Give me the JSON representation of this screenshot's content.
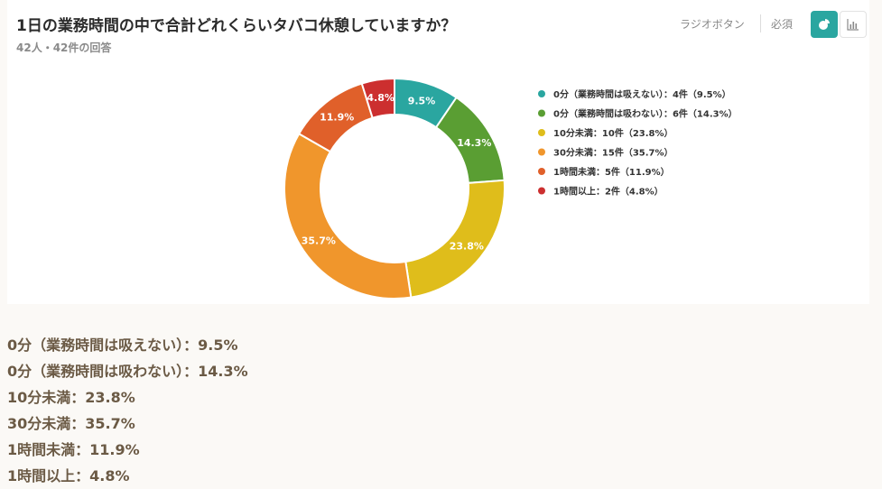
{
  "question": {
    "title": "1日の業務時間の中で合計どれくらいタバコ休憩していますか？",
    "responses": "42人・42件の回答",
    "type_label": "ラジオボタン",
    "required_label": "必須"
  },
  "view_toggle": {
    "active": "pie-chart-icon",
    "inactive": "bar-chart-icon"
  },
  "chart_data": {
    "type": "pie",
    "style": "donut",
    "legend_position": "right",
    "categories": [
      "0分（業務時間は吸えない）",
      "0分（業務時間は吸わない）",
      "10分未満",
      "30分未満",
      "1時間未満",
      "1時間以上"
    ],
    "counts": [
      4,
      6,
      10,
      15,
      5,
      2
    ],
    "values": [
      9.5,
      14.3,
      23.8,
      35.7,
      11.9,
      4.8
    ],
    "slice_labels": [
      "9.5%",
      "14.3%",
      "23.8%",
      "35.7%",
      "11.9%",
      "4.8%"
    ],
    "legend": [
      "0分（業務時間は吸えない）：4件（9.5%）",
      "0分（業務時間は吸わない）：6件（14.3%）",
      "10分未満：10件（23.8%）",
      "30分未満：15件（35.7%）",
      "1時間未満：5件（11.9%）",
      "1時間以上：2件（4.8%）"
    ],
    "colors": [
      "#2aa6a0",
      "#5a9e33",
      "#dfbd1b",
      "#f0962c",
      "#e0602a",
      "#cc2f2f"
    ]
  },
  "summary": [
    "0分（業務時間は吸えない）：9.5%",
    "0分（業務時間は吸わない）：14.3%",
    "10分未満：23.8%",
    "30分未満：35.7%",
    "1時間未満：11.9%",
    "1時間以上：4.8%"
  ]
}
